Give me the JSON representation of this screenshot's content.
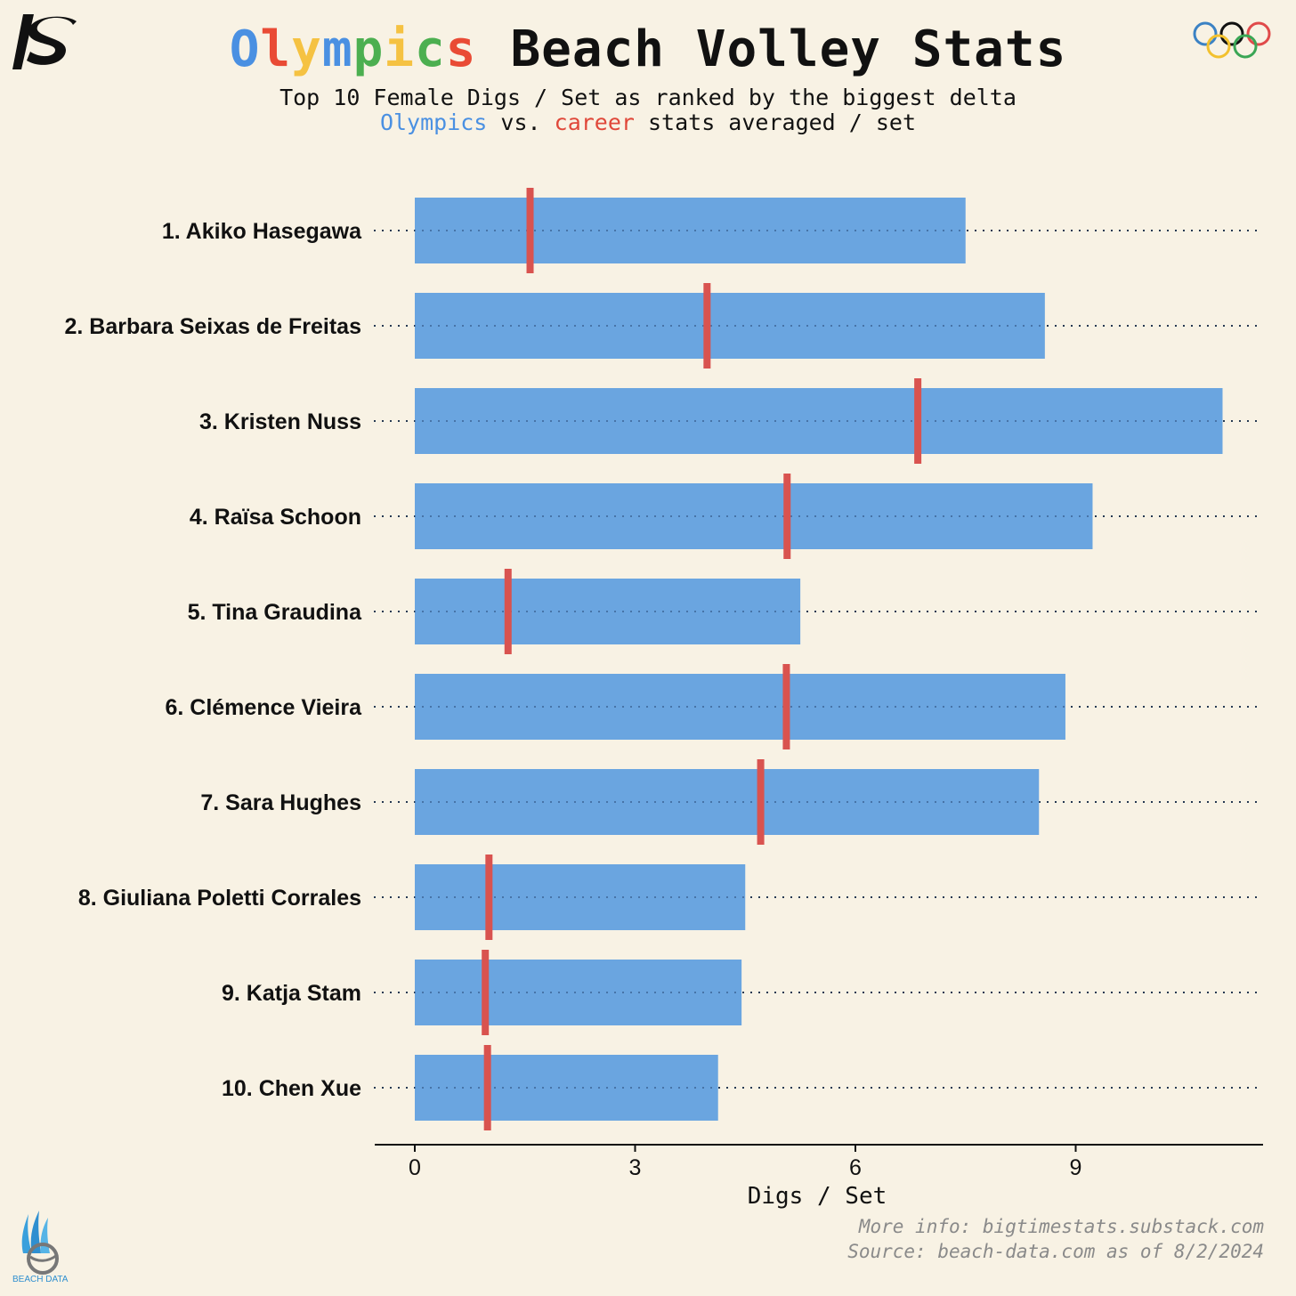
{
  "title": {
    "word1": "Olympics",
    "word1_letter_colors": [
      "#4a90e2",
      "#e94b35",
      "#f5c242",
      "#4a90e2",
      "#4caf50",
      "#f5c242",
      "#4caf50",
      "#e94b35"
    ],
    "word2": "Beach Volley Stats"
  },
  "subtitle": {
    "line1": "Top 10 Female Digs / Set as ranked by the biggest delta",
    "line2_part1": "Olympics",
    "line2_part2": " vs. ",
    "line2_part3": "career",
    "line2_part4": " stats averaged / set"
  },
  "footer": {
    "line1": "More info: bigtimestats.substack.com",
    "line2": "Source: beach-data.com as of 8/2/2024"
  },
  "logos": {
    "bd_text": "BEACH DATA"
  },
  "colors": {
    "background": "#f8f2e4",
    "olympics": "#6aa5e0",
    "career": "#d9534f",
    "footer": "#8a8a8a"
  },
  "chart_data": {
    "type": "bar",
    "orientation": "horizontal",
    "categories": [
      "1. Akiko Hasegawa",
      "2. Barbara Seixas de Freitas",
      "3. Kristen Nuss",
      "4. Raïsa Schoon",
      "5. Tina Graudina",
      "6. Clémence Vieira",
      "7. Sara Hughes",
      "8. Giuliana Poletti Corrales",
      "9. Katja Stam",
      "10. Chen Xue"
    ],
    "series": [
      {
        "name": "Olympics",
        "style": "bar",
        "color": "#6aa5e0",
        "values": [
          7.5,
          8.58,
          11.0,
          9.23,
          5.25,
          8.86,
          8.5,
          4.5,
          4.45,
          4.13
        ]
      },
      {
        "name": "career",
        "style": "tick",
        "color": "#d9534f",
        "values": [
          1.57,
          3.98,
          6.85,
          5.07,
          1.27,
          5.06,
          4.71,
          1.01,
          0.96,
          0.99
        ]
      }
    ],
    "xlabel": "Digs / Set",
    "xticks": [
      0,
      3,
      6,
      9
    ],
    "xlim": [
      0,
      11.5
    ],
    "grid": "dotted row guides"
  }
}
